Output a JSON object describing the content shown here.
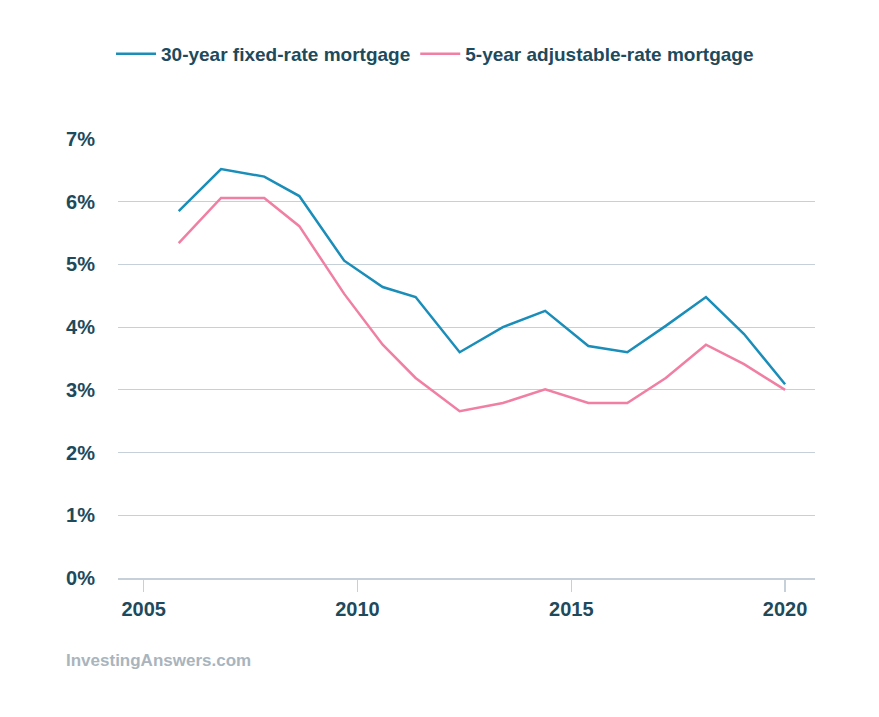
{
  "chart_data": {
    "type": "line",
    "x": [
      2005.82,
      2006.81,
      2007.82,
      2008.64,
      2009.69,
      2010.59,
      2011.36,
      2012.39,
      2013.4,
      2014.39,
      2015.4,
      2016.31,
      2017.21,
      2018.15,
      2019.04,
      2020.0
    ],
    "series": [
      {
        "name": "30-year fixed-rate mortgage",
        "color": "#1a8db8",
        "values": [
          5.85,
          6.52,
          6.4,
          6.09,
          5.06,
          4.64,
          4.48,
          3.6,
          4.0,
          4.26,
          3.7,
          3.6,
          4.02,
          4.48,
          3.89,
          3.09
        ]
      },
      {
        "name": "5-year adjustable-rate mortgage",
        "color": "#f07fa3",
        "values": [
          5.34,
          6.06,
          6.06,
          5.61,
          4.53,
          3.72,
          3.19,
          2.66,
          2.79,
          3.01,
          2.79,
          2.79,
          3.19,
          3.72,
          3.41,
          3.0
        ]
      }
    ],
    "xlim": [
      2004.4,
      2020.7
    ],
    "xticks": [
      2005,
      2010,
      2015,
      2020
    ],
    "ylim": [
      0,
      7
    ],
    "yticks": [
      {
        "value": 0,
        "label": "0%"
      },
      {
        "value": 1,
        "label": "1%"
      },
      {
        "value": 2,
        "label": "2%"
      },
      {
        "value": 3,
        "label": "3%"
      },
      {
        "value": 4,
        "label": "4%"
      },
      {
        "value": 5,
        "label": "5%"
      },
      {
        "value": 6,
        "label": "6%"
      },
      {
        "value": 7,
        "label": "7%"
      }
    ],
    "grid": true,
    "legend": "top-left",
    "annotations": [
      "InvestingAnswers.com"
    ]
  }
}
